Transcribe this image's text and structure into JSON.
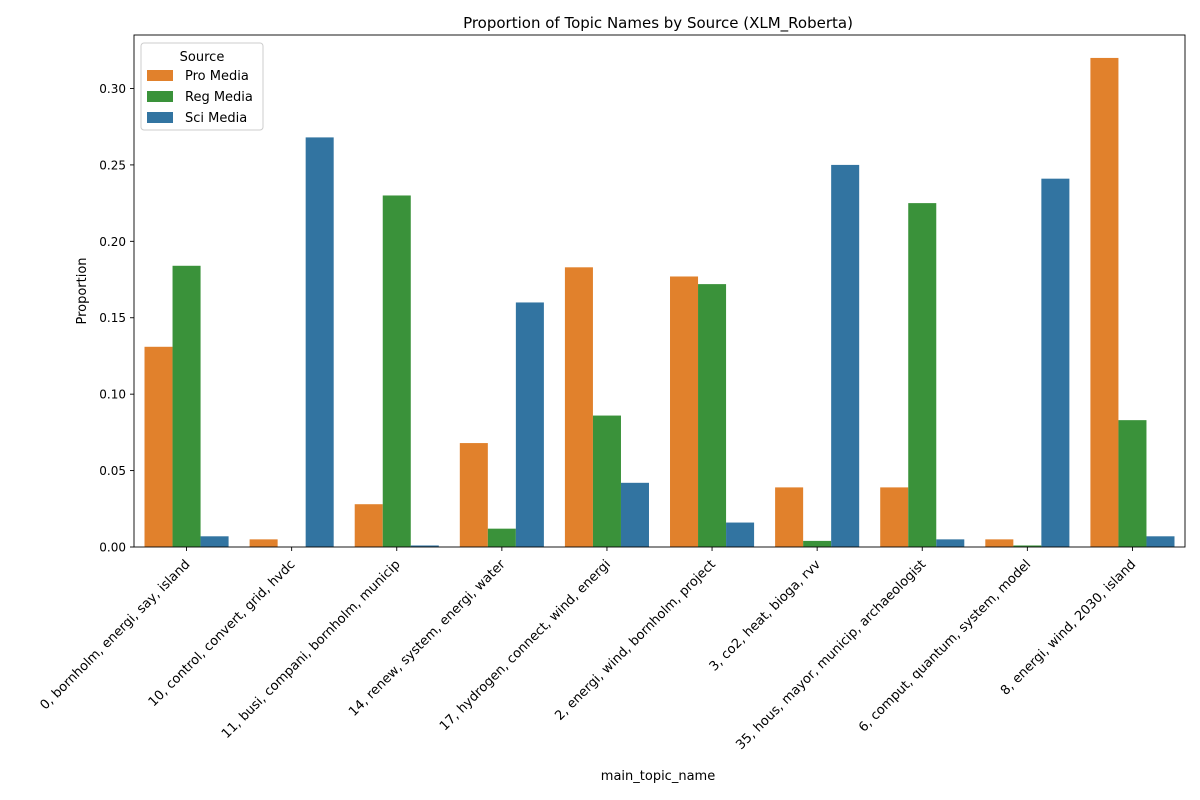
{
  "chart_data": {
    "type": "bar",
    "title": "Proportion of Topic Names by Source (XLM_Roberta)",
    "xlabel": "main_topic_name",
    "ylabel": "Proportion",
    "ylim": [
      0,
      0.335
    ],
    "yticks": [
      0.0,
      0.05,
      0.1,
      0.15,
      0.2,
      0.25,
      0.3
    ],
    "ytick_labels": [
      "0.00",
      "0.05",
      "0.10",
      "0.15",
      "0.20",
      "0.25",
      "0.30"
    ],
    "grid": false,
    "legend": {
      "title": "Source",
      "placement": "top-left"
    },
    "categories": [
      "0, bornholm, energi, say, island",
      "10, control, convert, grid, hvdc",
      "11, busi, compani, bornholm, municip",
      "14, renew, system, energi, water",
      "17, hydrogen, connect, wind, energi",
      "2, energi, wind, bornholm, project",
      "3, co2, heat, bioga, rvv",
      "35, hous, mayor, municip, archaeologist",
      "6, comput, quantum, system, model",
      "8, energi, wind, 2030, island"
    ],
    "series": [
      {
        "name": "Pro Media",
        "color": "#e1812c",
        "values": [
          0.131,
          0.005,
          0.028,
          0.068,
          0.183,
          0.177,
          0.039,
          0.039,
          0.005,
          0.32
        ]
      },
      {
        "name": "Reg Media",
        "color": "#3a923a",
        "values": [
          0.184,
          0.0,
          0.23,
          0.012,
          0.086,
          0.172,
          0.004,
          0.225,
          0.001,
          0.083
        ]
      },
      {
        "name": "Sci Media",
        "color": "#3274a1",
        "values": [
          0.007,
          0.268,
          0.001,
          0.16,
          0.042,
          0.016,
          0.25,
          0.005,
          0.241,
          0.007
        ]
      }
    ]
  }
}
